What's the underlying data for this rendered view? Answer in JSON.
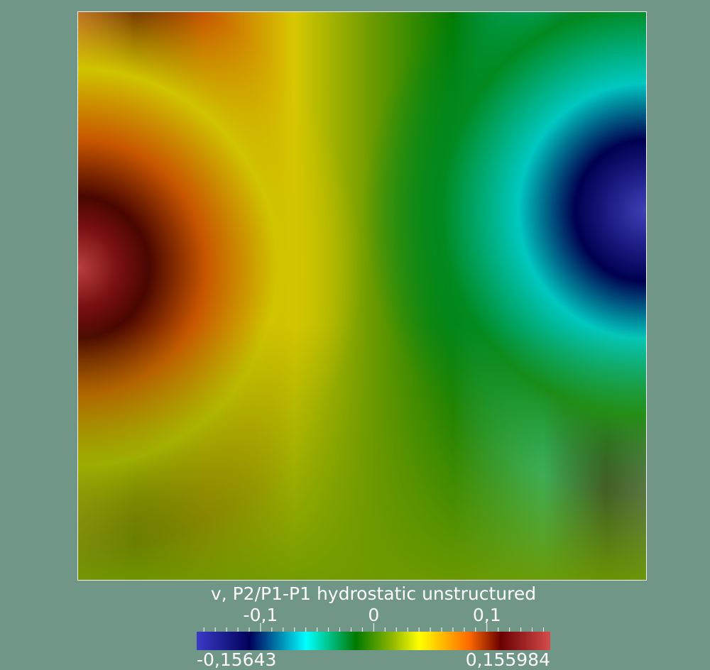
{
  "title": "v, P2/P1-P1 hydrostatic unstructured",
  "colorbar": {
    "min_label": "-0,15643",
    "max_label": "0,155984",
    "min": -0.15643,
    "max": 0.155984,
    "ticks": [
      {
        "value": -0.1,
        "label": "-0,1"
      },
      {
        "value": 0,
        "label": "0"
      },
      {
        "value": 0.1,
        "label": "0,1"
      }
    ],
    "colormap": [
      "#3b3bc8",
      "#00005a",
      "#00ffff",
      "#007a00",
      "#8ab400",
      "#ffff00",
      "#ff6a00",
      "#6a0000",
      "#d64c4c"
    ]
  },
  "colors": {
    "background": "#6f9686",
    "text": "#ffffff"
  }
}
